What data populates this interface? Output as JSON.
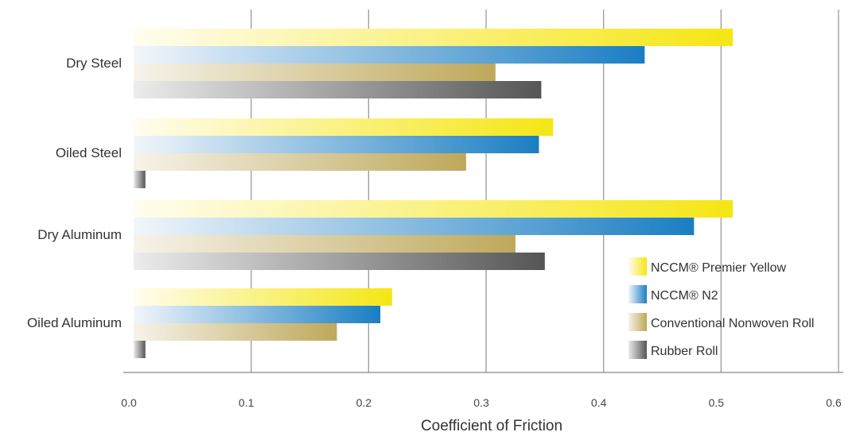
{
  "chart_data": {
    "type": "bar",
    "orientation": "horizontal",
    "categories": [
      "Dry Steel",
      "Oiled Steel",
      "Dry Aluminum",
      "Oiled Aluminum"
    ],
    "series": [
      {
        "name": "NCCM® Premier Yellow",
        "values": [
          0.51,
          0.357,
          0.51,
          0.22
        ],
        "color": "#f5e614",
        "color_light": "#fffdf0"
      },
      {
        "name": "NCCM® N2",
        "values": [
          0.435,
          0.345,
          0.477,
          0.21
        ],
        "color": "#1a7ec3",
        "color_light": "#f2f6fb"
      },
      {
        "name": "Conventional Nonwoven Roll",
        "values": [
          0.308,
          0.283,
          0.325,
          0.173
        ],
        "color": "#bea85a",
        "color_light": "#f6f3ea"
      },
      {
        "name": "Rubber Roll",
        "values": [
          0.347,
          0.01,
          0.35,
          0.01
        ],
        "color": "#555555",
        "color_light": "#ececec"
      }
    ],
    "xlabel": "Coefficient of Friction",
    "ylabel": "",
    "xlim": [
      0.0,
      0.6
    ],
    "xticks": [
      "0.0",
      "0.1",
      "0.2",
      "0.3",
      "0.4",
      "0.5",
      "0.6"
    ],
    "grid": true,
    "legend_position": "bottom-right"
  }
}
